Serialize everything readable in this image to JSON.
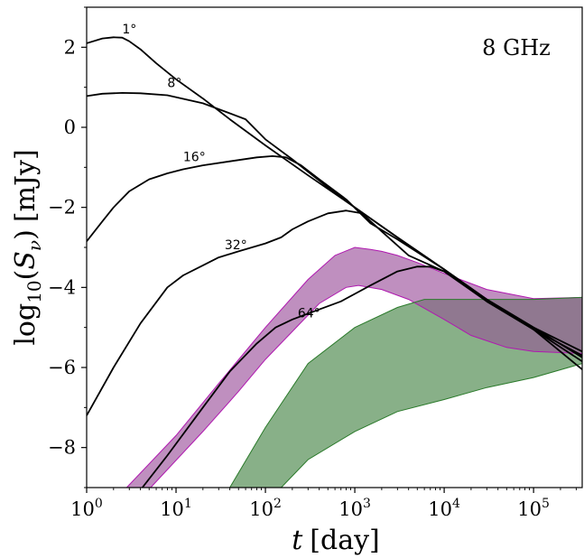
{
  "chart_data": {
    "type": "line",
    "title": "",
    "annotation": "8 GHz",
    "xlabel": {
      "var": "t",
      "unit": "[day]"
    },
    "ylabel": {
      "prefix": "log",
      "sub": "10",
      "open": "(",
      "var": "S",
      "varsub": "ν",
      "close": ")",
      "unit": "[mJy]"
    },
    "x_scale": "log",
    "xlim": [
      1,
      350000
    ],
    "ylim": [
      -9,
      3
    ],
    "grid": false,
    "x_ticks": [
      {
        "value": 1,
        "base": "10",
        "exp": "0"
      },
      {
        "value": 10,
        "base": "10",
        "exp": "1"
      },
      {
        "value": 100,
        "base": "10",
        "exp": "2"
      },
      {
        "value": 1000,
        "base": "10",
        "exp": "3"
      },
      {
        "value": 10000,
        "base": "10",
        "exp": "4"
      },
      {
        "value": 100000,
        "base": "10",
        "exp": "5"
      }
    ],
    "y_ticks": [
      {
        "value": 2,
        "label": "2"
      },
      {
        "value": 0,
        "label": "0"
      },
      {
        "value": -2,
        "label": "−2"
      },
      {
        "value": -4,
        "label": "−4"
      },
      {
        "value": -6,
        "label": "−6"
      },
      {
        "value": -8,
        "label": "−8"
      }
    ],
    "series": [
      {
        "name": "1°",
        "label_at": [
          2.5,
          2.35
        ],
        "points": [
          [
            1,
            2.1
          ],
          [
            1.5,
            2.22
          ],
          [
            2,
            2.25
          ],
          [
            2.5,
            2.24
          ],
          [
            3,
            2.15
          ],
          [
            4,
            1.95
          ],
          [
            6,
            1.6
          ],
          [
            10,
            1.2
          ],
          [
            20,
            0.72
          ],
          [
            40,
            0.2
          ],
          [
            100,
            -0.45
          ],
          [
            300,
            -1.2
          ],
          [
            1000,
            -2.0
          ],
          [
            3000,
            -2.75
          ],
          [
            10000,
            -3.55
          ],
          [
            30000,
            -4.3
          ],
          [
            100000,
            -5.05
          ],
          [
            350000,
            -5.85
          ]
        ]
      },
      {
        "name": "8°",
        "label_at": [
          8,
          1.0
        ],
        "points": [
          [
            1,
            0.78
          ],
          [
            1.5,
            0.84
          ],
          [
            2.5,
            0.86
          ],
          [
            4,
            0.85
          ],
          [
            8,
            0.8
          ],
          [
            20,
            0.6
          ],
          [
            40,
            0.35
          ],
          [
            60,
            0.2
          ],
          [
            100,
            -0.3
          ],
          [
            200,
            -0.8
          ],
          [
            500,
            -1.5
          ],
          [
            1000,
            -2.0
          ],
          [
            3000,
            -2.75
          ],
          [
            10000,
            -3.55
          ],
          [
            30000,
            -4.35
          ],
          [
            100000,
            -5.05
          ],
          [
            350000,
            -6.05
          ]
        ]
      },
      {
        "name": "16°",
        "label_at": [
          12,
          -0.85
        ],
        "points": [
          [
            1,
            -2.85
          ],
          [
            1.5,
            -2.35
          ],
          [
            2,
            -2.0
          ],
          [
            3,
            -1.6
          ],
          [
            5,
            -1.3
          ],
          [
            8,
            -1.15
          ],
          [
            12,
            -1.05
          ],
          [
            20,
            -0.95
          ],
          [
            40,
            -0.85
          ],
          [
            80,
            -0.75
          ],
          [
            120,
            -0.72
          ],
          [
            170,
            -0.75
          ],
          [
            250,
            -0.95
          ],
          [
            400,
            -1.3
          ],
          [
            800,
            -1.8
          ],
          [
            1500,
            -2.4
          ],
          [
            3000,
            -2.8
          ],
          [
            10000,
            -3.55
          ],
          [
            30000,
            -4.3
          ],
          [
            100000,
            -5.0
          ],
          [
            350000,
            -5.75
          ]
        ]
      },
      {
        "name": "32°",
        "label_at": [
          35,
          -3.05
        ],
        "points": [
          [
            1,
            -7.2
          ],
          [
            2,
            -6.0
          ],
          [
            4,
            -4.9
          ],
          [
            8,
            -4.0
          ],
          [
            12,
            -3.7
          ],
          [
            20,
            -3.45
          ],
          [
            30,
            -3.25
          ],
          [
            50,
            -3.1
          ],
          [
            100,
            -2.9
          ],
          [
            150,
            -2.75
          ],
          [
            200,
            -2.55
          ],
          [
            300,
            -2.35
          ],
          [
            500,
            -2.15
          ],
          [
            800,
            -2.08
          ],
          [
            1200,
            -2.15
          ],
          [
            2000,
            -2.6
          ],
          [
            4000,
            -3.2
          ],
          [
            10000,
            -3.6
          ],
          [
            30000,
            -4.35
          ],
          [
            100000,
            -5.05
          ],
          [
            350000,
            -5.7
          ]
        ]
      },
      {
        "name": "64°",
        "label_at": [
          230,
          -4.75
        ],
        "points": [
          [
            4.2,
            -9.0
          ],
          [
            8,
            -8.2
          ],
          [
            20,
            -7.0
          ],
          [
            40,
            -6.1
          ],
          [
            80,
            -5.4
          ],
          [
            130,
            -5.0
          ],
          [
            200,
            -4.8
          ],
          [
            400,
            -4.55
          ],
          [
            700,
            -4.35
          ],
          [
            1500,
            -3.95
          ],
          [
            3000,
            -3.6
          ],
          [
            5000,
            -3.48
          ],
          [
            7000,
            -3.48
          ],
          [
            10000,
            -3.6
          ],
          [
            30000,
            -4.3
          ],
          [
            100000,
            -5.0
          ],
          [
            350000,
            -5.6
          ]
        ]
      }
    ],
    "bands": [
      {
        "name": "magenta-band",
        "fill": "#bf8fbf",
        "edge": "#b018b0",
        "upper": [
          [
            2.8,
            -9.0
          ],
          [
            10,
            -7.7
          ],
          [
            30,
            -6.4
          ],
          [
            100,
            -5.0
          ],
          [
            300,
            -3.8
          ],
          [
            600,
            -3.2
          ],
          [
            1000,
            -3.0
          ],
          [
            1500,
            -3.05
          ],
          [
            2000,
            -3.1
          ],
          [
            3000,
            -3.2
          ],
          [
            5000,
            -3.38
          ],
          [
            10000,
            -3.65
          ],
          [
            30000,
            -4.05
          ],
          [
            100000,
            -4.28
          ],
          [
            350000,
            -4.25
          ]
        ],
        "lower": [
          [
            5.2,
            -9.0
          ],
          [
            20,
            -7.6
          ],
          [
            50,
            -6.6
          ],
          [
            100,
            -5.8
          ],
          [
            200,
            -5.1
          ],
          [
            400,
            -4.4
          ],
          [
            800,
            -4.0
          ],
          [
            1100,
            -3.95
          ],
          [
            2000,
            -4.05
          ],
          [
            4000,
            -4.3
          ],
          [
            10000,
            -4.8
          ],
          [
            20000,
            -5.2
          ],
          [
            50000,
            -5.5
          ],
          [
            100000,
            -5.6
          ],
          [
            350000,
            -5.65
          ]
        ]
      },
      {
        "name": "green-band",
        "fill": "#88b088",
        "edge": "#2a7a2a",
        "upper": [
          [
            40,
            -9.0
          ],
          [
            100,
            -7.5
          ],
          [
            300,
            -5.9
          ],
          [
            1000,
            -5.0
          ],
          [
            3000,
            -4.5
          ],
          [
            6000,
            -4.3
          ],
          [
            10000,
            -4.3
          ],
          [
            30000,
            -4.3
          ],
          [
            100000,
            -4.3
          ],
          [
            350000,
            -4.25
          ]
        ],
        "lower": [
          [
            150,
            -9.0
          ],
          [
            300,
            -8.3
          ],
          [
            1000,
            -7.6
          ],
          [
            3000,
            -7.1
          ],
          [
            10000,
            -6.8
          ],
          [
            30000,
            -6.5
          ],
          [
            100000,
            -6.25
          ],
          [
            350000,
            -5.9
          ]
        ]
      }
    ],
    "band_overlap_fill": "#907890"
  }
}
